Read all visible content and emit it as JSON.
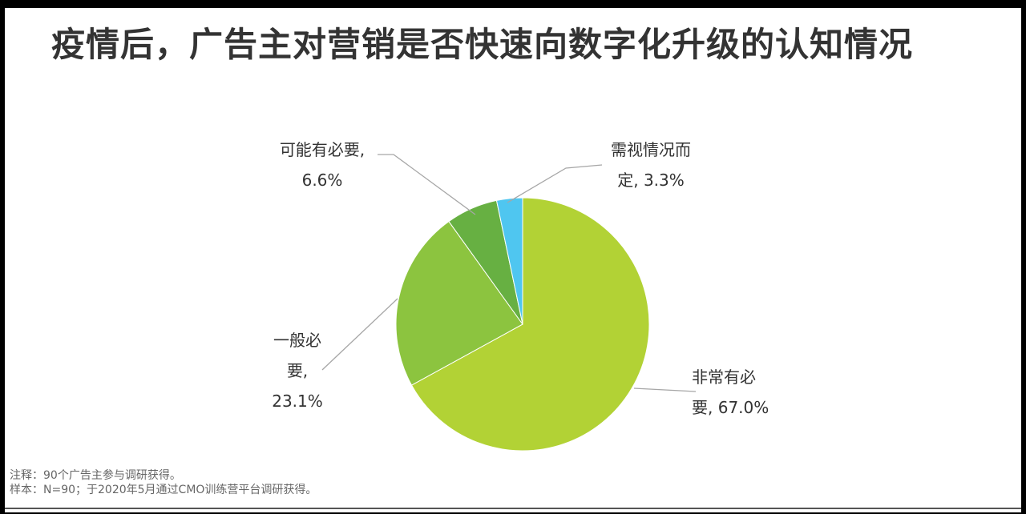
{
  "title": "疫情后，广告主对营销是否快速向数字化升级的认知情况",
  "chart_data": {
    "type": "pie",
    "title": "疫情后，广告主对营销是否快速向数字化升级的认知情况",
    "slices": [
      {
        "label_lines": [
          "非常有必",
          "要, 67.0%"
        ],
        "value": 67.0,
        "color": "#b2d235"
      },
      {
        "label_lines": [
          "一般必",
          "要,",
          "23.1%"
        ],
        "value": 23.1,
        "color": "#8cc43f"
      },
      {
        "label_lines": [
          "可能有必要,",
          "6.6%"
        ],
        "value": 6.6,
        "color": "#67b042"
      },
      {
        "label_lines": [
          "需视情况而",
          "定, 3.3%"
        ],
        "value": 3.3,
        "color": "#4fc6f0"
      }
    ]
  },
  "notes": {
    "note": "注释：90个广告主参与调研获得。",
    "sample": "样本：N=90；于2020年5月通过CMO训练营平台调研获得。"
  }
}
